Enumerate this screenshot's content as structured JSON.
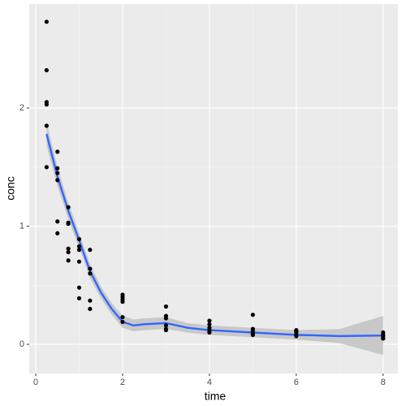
{
  "chart_data": {
    "type": "scatter",
    "x_label": "time",
    "y_label": "conc",
    "xlim": [
      -0.15,
      8.34
    ],
    "ylim": [
      -0.247,
      2.88
    ],
    "xticks": [
      0,
      2,
      4,
      6,
      8
    ],
    "yticks": [
      0,
      1,
      2
    ],
    "grid": true,
    "series": [
      {
        "name": "observations",
        "type": "scatter",
        "color": "#000000",
        "x": [
          0.25,
          0.25,
          0.25,
          0.25,
          0.25,
          0.25,
          0.5,
          0.5,
          0.5,
          0.5,
          0.5,
          0.5,
          0.75,
          0.75,
          0.75,
          0.75,
          0.75,
          0.75,
          1,
          1,
          1,
          1,
          1,
          1,
          1.25,
          1.25,
          1.25,
          1.25,
          1.25,
          2,
          2,
          2,
          2,
          2,
          2,
          3,
          3,
          3,
          3,
          3,
          3,
          4,
          4,
          4,
          4,
          4,
          5,
          5,
          5,
          5,
          5,
          6,
          6,
          6,
          6,
          6,
          8,
          8,
          8,
          8,
          8
        ],
        "values": [
          2.73,
          2.32,
          2.05,
          2.03,
          1.85,
          1.5,
          1.63,
          1.49,
          1.45,
          1.39,
          1.04,
          0.94,
          1.16,
          1.03,
          1.02,
          0.81,
          0.78,
          0.71,
          0.89,
          0.83,
          0.8,
          0.7,
          0.48,
          0.39,
          0.8,
          0.64,
          0.6,
          0.37,
          0.3,
          0.42,
          0.4,
          0.38,
          0.36,
          0.23,
          0.19,
          0.32,
          0.24,
          0.22,
          0.16,
          0.13,
          0.12,
          0.2,
          0.17,
          0.14,
          0.12,
          0.1,
          0.25,
          0.13,
          0.11,
          0.09,
          0.08,
          0.12,
          0.11,
          0.1,
          0.08,
          0.07,
          0.1,
          0.08,
          0.07,
          0.05,
          0.05
        ]
      },
      {
        "name": "smooth",
        "type": "line",
        "color": "#3366ff",
        "band_color": "#c2c2c2",
        "x": [
          0.25,
          0.5,
          0.75,
          1,
          1.25,
          1.5,
          1.75,
          2,
          2.25,
          2.5,
          3,
          3.5,
          4,
          5,
          6,
          7,
          8
        ],
        "values": [
          1.78,
          1.42,
          1.13,
          0.88,
          0.62,
          0.44,
          0.3,
          0.19,
          0.16,
          0.17,
          0.18,
          0.14,
          0.12,
          0.1,
          0.08,
          0.07,
          0.075
        ],
        "lower": [
          1.68,
          1.34,
          1.06,
          0.82,
          0.56,
          0.39,
          0.25,
          0.14,
          0.11,
          0.12,
          0.13,
          0.1,
          0.08,
          0.06,
          0.04,
          0.01,
          -0.09
        ],
        "upper": [
          1.88,
          1.5,
          1.2,
          0.94,
          0.68,
          0.49,
          0.35,
          0.24,
          0.21,
          0.22,
          0.23,
          0.18,
          0.16,
          0.14,
          0.12,
          0.13,
          0.24
        ]
      }
    ]
  }
}
